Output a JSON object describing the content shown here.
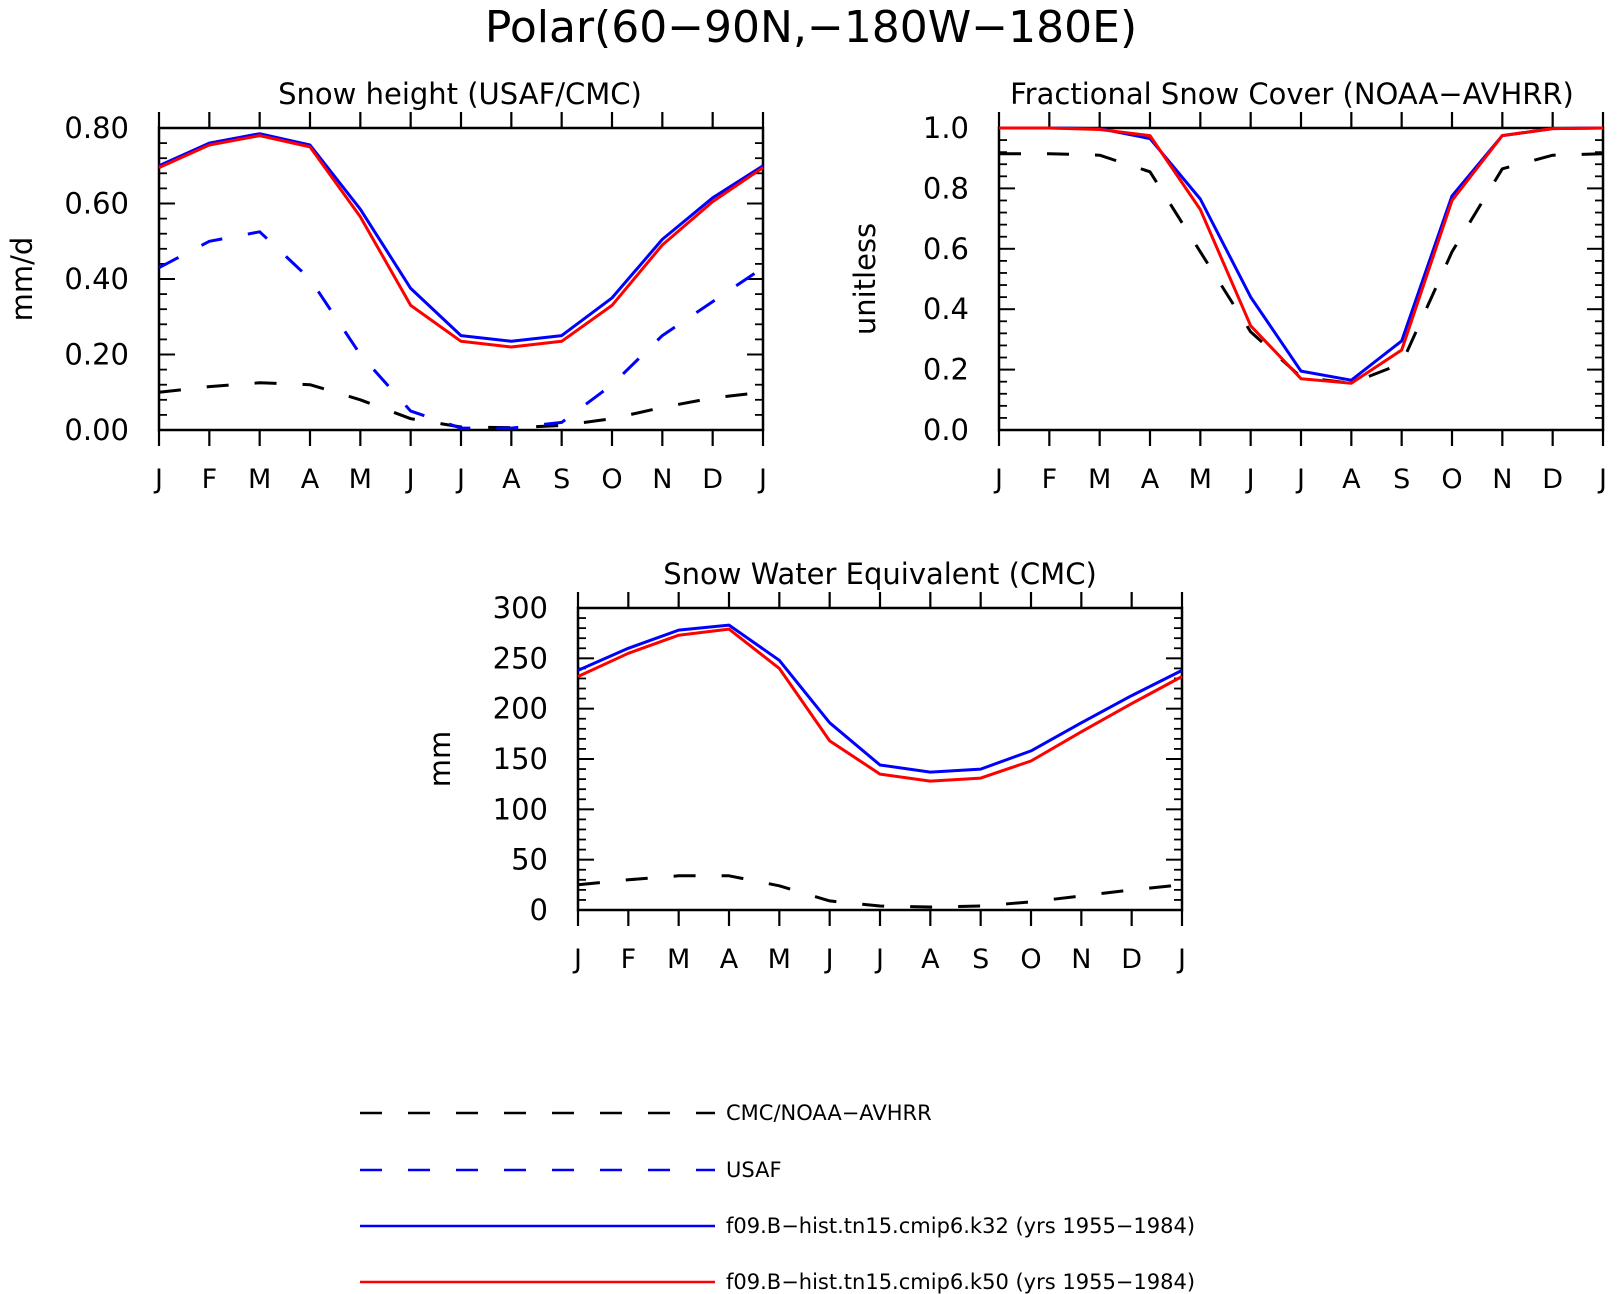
{
  "figure": {
    "title": "Polar(60−90N,−180W−180E)"
  },
  "colors": {
    "obs": "#000000",
    "usaf": "#0000ff",
    "k32": "#0000ff",
    "k50": "#ff0000"
  },
  "chart_data": [
    {
      "type": "line",
      "title": "Snow height (USAF/CMC)",
      "xlabel": "",
      "ylabel": "mm/d",
      "categories": [
        "J",
        "F",
        "M",
        "A",
        "M",
        "J",
        "J",
        "A",
        "S",
        "O",
        "N",
        "D",
        "J"
      ],
      "ylim": [
        0,
        0.8
      ],
      "yticks": [
        "0.00",
        "0.20",
        "0.40",
        "0.60",
        "0.80"
      ],
      "series": [
        {
          "name": "CMC/NOAA−AVHRR",
          "key": "obs",
          "dash": "dashed",
          "values": [
            0.1,
            0.115,
            0.125,
            0.12,
            0.08,
            0.03,
            0.008,
            0.006,
            0.012,
            0.03,
            0.06,
            0.085,
            0.1
          ]
        },
        {
          "name": "USAF",
          "key": "usaf",
          "dash": "dashed",
          "values": [
            0.43,
            0.5,
            0.525,
            0.4,
            0.2,
            0.05,
            0.005,
            0.005,
            0.02,
            0.12,
            0.25,
            0.34,
            0.43
          ]
        },
        {
          "name": "f09.B−hist.tn15.cmip6.k32 (yrs 1955−1984)",
          "key": "k32",
          "dash": "solid",
          "values": [
            0.7,
            0.76,
            0.785,
            0.755,
            0.585,
            0.375,
            0.25,
            0.235,
            0.25,
            0.35,
            0.505,
            0.615,
            0.7
          ]
        },
        {
          "name": "f09.B−hist.tn15.cmip6.k50 (yrs 1955−1984)",
          "key": "k50",
          "dash": "solid",
          "values": [
            0.695,
            0.755,
            0.78,
            0.75,
            0.565,
            0.33,
            0.235,
            0.22,
            0.235,
            0.33,
            0.49,
            0.605,
            0.695
          ]
        }
      ]
    },
    {
      "type": "line",
      "title": "Fractional Snow Cover (NOAA−AVHRR)",
      "xlabel": "",
      "ylabel": "unitless",
      "categories": [
        "J",
        "F",
        "M",
        "A",
        "M",
        "J",
        "J",
        "A",
        "S",
        "O",
        "N",
        "D",
        "J"
      ],
      "ylim": [
        0,
        1.0
      ],
      "yticks": [
        "0.0",
        "0.2",
        "0.4",
        "0.6",
        "0.8",
        "1.0"
      ],
      "series": [
        {
          "name": "CMC/NOAA−AVHRR",
          "key": "obs",
          "dash": "dashed",
          "values": [
            0.915,
            0.915,
            0.91,
            0.855,
            0.59,
            0.325,
            0.175,
            0.155,
            0.22,
            0.59,
            0.865,
            0.91,
            0.915
          ]
        },
        {
          "name": "f09.B−hist.tn15.cmip6.k32 (yrs 1955−1984)",
          "key": "k32",
          "dash": "solid",
          "values": [
            1.0,
            1.0,
            0.998,
            0.965,
            0.765,
            0.44,
            0.195,
            0.165,
            0.295,
            0.775,
            0.975,
            0.998,
            1.0
          ]
        },
        {
          "name": "f09.B−hist.tn15.cmip6.k50 (yrs 1955−1984)",
          "key": "k50",
          "dash": "solid",
          "values": [
            1.0,
            1.0,
            0.995,
            0.975,
            0.73,
            0.345,
            0.17,
            0.155,
            0.265,
            0.76,
            0.975,
            0.998,
            1.0
          ]
        }
      ]
    },
    {
      "type": "line",
      "title": "Snow Water Equivalent (CMC)",
      "xlabel": "",
      "ylabel": "mm",
      "categories": [
        "J",
        "F",
        "M",
        "A",
        "M",
        "J",
        "J",
        "A",
        "S",
        "O",
        "N",
        "D",
        "J"
      ],
      "ylim": [
        0,
        300
      ],
      "yticks": [
        "0",
        "50",
        "100",
        "150",
        "200",
        "250",
        "300"
      ],
      "series": [
        {
          "name": "CMC/NOAA−AVHRR",
          "key": "obs",
          "dash": "dashed",
          "values": [
            25,
            30,
            34,
            34,
            24,
            9,
            4,
            3,
            4,
            8,
            14,
            20,
            25
          ]
        },
        {
          "name": "f09.B−hist.tn15.cmip6.k32 (yrs 1955−1984)",
          "key": "k32",
          "dash": "solid",
          "values": [
            238,
            260,
            278,
            283,
            248,
            186,
            144,
            137,
            140,
            158,
            186,
            213,
            238
          ]
        },
        {
          "name": "f09.B−hist.tn15.cmip6.k50 (yrs 1955−1984)",
          "key": "k50",
          "dash": "solid",
          "values": [
            232,
            255,
            273,
            279,
            240,
            168,
            135,
            128,
            131,
            148,
            177,
            205,
            232
          ]
        }
      ]
    }
  ],
  "legend": {
    "entries": [
      {
        "label": "CMC/NOAA−AVHRR",
        "key": "obs",
        "dash": "dashed"
      },
      {
        "label": "USAF",
        "key": "usaf",
        "dash": "dashed"
      },
      {
        "label": "f09.B−hist.tn15.cmip6.k32 (yrs 1955−1984)",
        "key": "k32",
        "dash": "solid"
      },
      {
        "label": "f09.B−hist.tn15.cmip6.k50 (yrs 1955−1984)",
        "key": "k50",
        "dash": "solid"
      }
    ]
  }
}
